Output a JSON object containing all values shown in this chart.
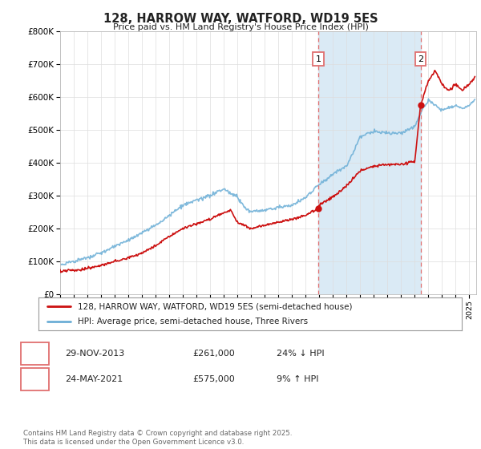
{
  "title": "128, HARROW WAY, WATFORD, WD19 5ES",
  "subtitle": "Price paid vs. HM Land Registry's House Price Index (HPI)",
  "ylabel_ticks": [
    "£0",
    "£100K",
    "£200K",
    "£300K",
    "£400K",
    "£500K",
    "£600K",
    "£700K",
    "£800K"
  ],
  "ylim": [
    0,
    800000
  ],
  "xlim_start": 1995.0,
  "xlim_end": 2025.5,
  "hpi_color": "#6baed6",
  "hpi_fill_color": "#c6dcef",
  "price_color": "#cc1111",
  "vline_color": "#e07070",
  "vline1_x": 2013.92,
  "vline2_x": 2021.42,
  "marker1_x": 2013.92,
  "marker1_y": 261000,
  "marker2_x": 2021.42,
  "marker2_y": 575000,
  "shade_color": "#daeaf5",
  "legend_price_label": "128, HARROW WAY, WATFORD, WD19 5ES (semi-detached house)",
  "legend_hpi_label": "HPI: Average price, semi-detached house, Three Rivers",
  "annotation1_date": "29-NOV-2013",
  "annotation1_price": "£261,000",
  "annotation1_hpi": "24% ↓ HPI",
  "annotation2_date": "24-MAY-2021",
  "annotation2_price": "£575,000",
  "annotation2_hpi": "9% ↑ HPI",
  "footer": "Contains HM Land Registry data © Crown copyright and database right 2025.\nThis data is licensed under the Open Government Licence v3.0.",
  "background_color": "#ffffff",
  "grid_color": "#dddddd",
  "hpi_control_x": [
    1995,
    1996,
    1997,
    1998,
    1999,
    2000,
    2001,
    2002,
    2003,
    2004,
    2005,
    2006,
    2007,
    2008,
    2008.5,
    2009,
    2010,
    2011,
    2012,
    2013,
    2014,
    2015,
    2016,
    2017,
    2018,
    2019,
    2020,
    2021,
    2021.5,
    2022,
    2022.5,
    2023,
    2023.5,
    2024,
    2024.5,
    2025,
    2025.4
  ],
  "hpi_control_y": [
    90000,
    100000,
    110000,
    125000,
    145000,
    165000,
    185000,
    210000,
    240000,
    270000,
    285000,
    300000,
    320000,
    295000,
    265000,
    250000,
    255000,
    265000,
    270000,
    295000,
    335000,
    365000,
    390000,
    480000,
    495000,
    490000,
    490000,
    510000,
    560000,
    590000,
    575000,
    560000,
    570000,
    575000,
    565000,
    575000,
    590000
  ],
  "price_control_x": [
    1995,
    1996,
    1997,
    1998,
    1999,
    2000,
    2001,
    2002,
    2003,
    2004,
    2005,
    2006,
    2007,
    2007.5,
    2008,
    2009,
    2010,
    2011,
    2012,
    2013,
    2013.92,
    2014,
    2015,
    2016,
    2017,
    2018,
    2019,
    2020,
    2021,
    2021.42,
    2022,
    2022.5,
    2023,
    2023.5,
    2024,
    2024.5,
    2025,
    2025.4
  ],
  "price_control_y": [
    70000,
    72000,
    78000,
    88000,
    100000,
    110000,
    125000,
    148000,
    175000,
    200000,
    215000,
    228000,
    248000,
    255000,
    220000,
    200000,
    210000,
    218000,
    228000,
    240000,
    261000,
    272000,
    295000,
    330000,
    375000,
    390000,
    395000,
    395000,
    405000,
    575000,
    650000,
    680000,
    640000,
    620000,
    640000,
    620000,
    640000,
    660000
  ]
}
